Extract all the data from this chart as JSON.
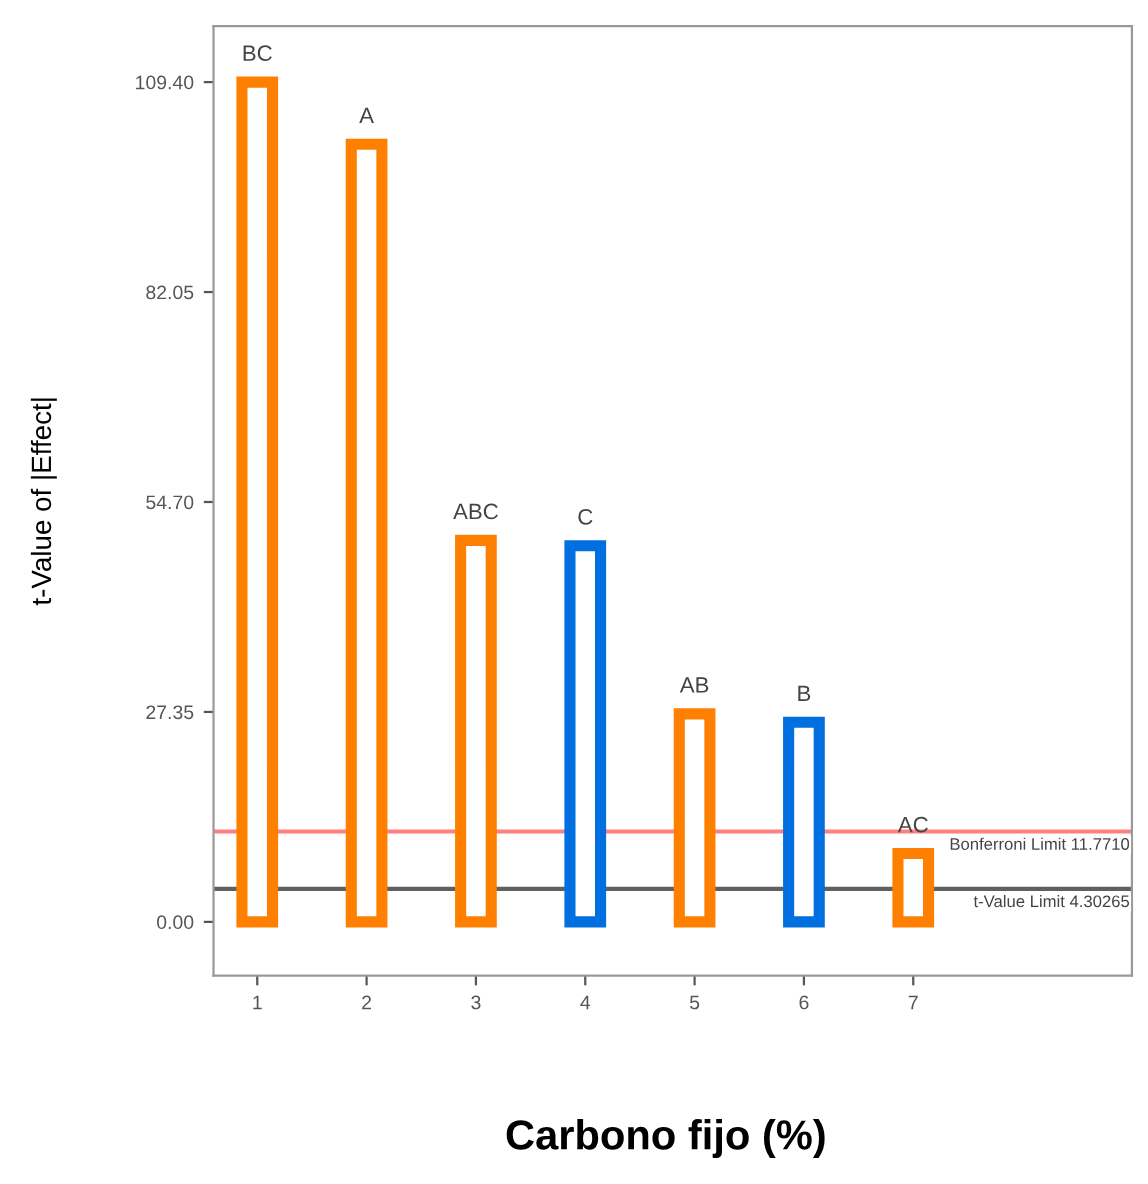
{
  "chart_data": {
    "type": "bar",
    "xlabel": "Carbono fijo (%)",
    "ylabel": "t-Value of |Effect|",
    "x": [
      1,
      2,
      3,
      4,
      5,
      6,
      7
    ],
    "values": [
      109.4,
      101.3,
      49.7,
      49.0,
      27.1,
      26.0,
      8.9
    ],
    "colors": [
      "#ff8000",
      "#ff8000",
      "#ff8000",
      "#0070e0",
      "#ff8000",
      "#0070e0",
      "#ff8000"
    ],
    "xlim": [
      0.6,
      9.0
    ],
    "xticks": [
      1,
      2,
      3,
      4,
      5,
      6,
      7
    ],
    "ylim": [
      -7,
      116.7
    ],
    "yticks": [
      {
        "value": 0,
        "label": "0.00"
      },
      {
        "value": 27.35,
        "label": "27.35"
      },
      {
        "value": 54.7,
        "label": "54.70"
      },
      {
        "value": 82.05,
        "label": "82.05"
      },
      {
        "value": 109.4,
        "label": "109.40"
      }
    ],
    "ref_lines": [
      {
        "axis": "y",
        "value": 11.771,
        "label": "Bonferroni Limit 11.7710",
        "color": "#ff8080"
      },
      {
        "axis": "y",
        "value": 4.303,
        "label": "t-Value Limit 4.30265",
        "color": "#606060"
      }
    ],
    "annotations": [
      {
        "text": "BC",
        "x": 1,
        "y": 109.4
      },
      {
        "text": "A",
        "x": 2,
        "y": 101.3
      },
      {
        "text": "ABC",
        "x": 3,
        "y": 49.7
      },
      {
        "text": "C",
        "x": 4,
        "y": 49.0
      },
      {
        "text": "AB",
        "x": 5,
        "y": 27.1
      },
      {
        "text": "B",
        "x": 6,
        "y": 26.0
      },
      {
        "text": "AC",
        "x": 7,
        "y": 8.9
      }
    ],
    "grid": false,
    "legend": false
  }
}
